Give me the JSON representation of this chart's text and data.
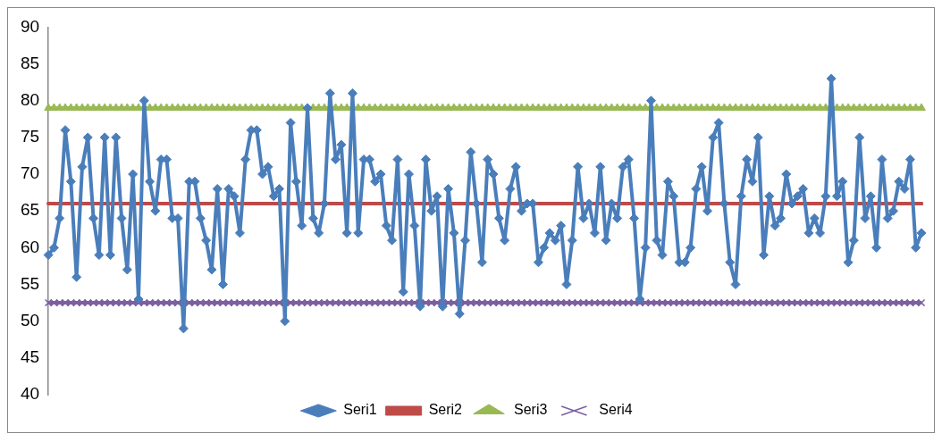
{
  "chart_data": {
    "type": "line",
    "categories": [
      null,
      null,
      null,
      null,
      null,
      null,
      null,
      null,
      null,
      null,
      null,
      null,
      null,
      null,
      null,
      null,
      null,
      null,
      null,
      null,
      null,
      null,
      null,
      null,
      null,
      null,
      null,
      null,
      null,
      null,
      null,
      null,
      null,
      null,
      null,
      null,
      null,
      null,
      null,
      null,
      null,
      null,
      null,
      null,
      null,
      null,
      null,
      null,
      null,
      null,
      null,
      null,
      null,
      null,
      null,
      null,
      null,
      null,
      null,
      null,
      null,
      null,
      null,
      null,
      null,
      null,
      null,
      null,
      null,
      null,
      null,
      null,
      null,
      null,
      null,
      null,
      null,
      null,
      null,
      null,
      null,
      null,
      null,
      null,
      null,
      null,
      null,
      null,
      null,
      null,
      null,
      null,
      null,
      null,
      null,
      null,
      null,
      null,
      null,
      null,
      null,
      null,
      null,
      null,
      null,
      null,
      null,
      null,
      null,
      null,
      null,
      null,
      null,
      null,
      null,
      null,
      null,
      null,
      null,
      null,
      null,
      null,
      null,
      null,
      null,
      null,
      null,
      null,
      null,
      null,
      null,
      null,
      null,
      null,
      null,
      null,
      null,
      null,
      null,
      null,
      null,
      null,
      null,
      null,
      null,
      null,
      null,
      null,
      null,
      null,
      null,
      null,
      null,
      null,
      null,
      null
    ],
    "series": [
      {
        "name": "Seri1",
        "color": "#4a7ebb",
        "marker": "diamond",
        "values": [
          59,
          60,
          64,
          76,
          69,
          56,
          71,
          75,
          64,
          59,
          75,
          59,
          75,
          64,
          57,
          70,
          53,
          80,
          69,
          65,
          72,
          72,
          64,
          64,
          49,
          69,
          69,
          64,
          61,
          57,
          68,
          55,
          68,
          67,
          62,
          72,
          76,
          76,
          70,
          71,
          67,
          68,
          50,
          77,
          69,
          63,
          79,
          64,
          62,
          66,
          81,
          72,
          74,
          62,
          81,
          62,
          72,
          72,
          69,
          70,
          63,
          61,
          72,
          54,
          70,
          63,
          52,
          72,
          65,
          67,
          52,
          68,
          62,
          51,
          61,
          73,
          66,
          58,
          72,
          70,
          64,
          61,
          68,
          71,
          65,
          66,
          66,
          58,
          60,
          62,
          61,
          63,
          55,
          61,
          71,
          64,
          66,
          62,
          71,
          61,
          66,
          64,
          71,
          72,
          64,
          53,
          60,
          80,
          61,
          59,
          69,
          67,
          58,
          58,
          60,
          68,
          71,
          65,
          75,
          77,
          66,
          58,
          55,
          67,
          72,
          69,
          75,
          59,
          67,
          63,
          64,
          70,
          66,
          67,
          68,
          62,
          64,
          62,
          67,
          83,
          67,
          69,
          58,
          61,
          75,
          64,
          67,
          60,
          72,
          64,
          65,
          69,
          68,
          72,
          60,
          62
        ]
      },
      {
        "name": "Seri2",
        "color": "#be4b48",
        "marker": "square",
        "values": [
          66,
          66,
          66,
          66,
          66,
          66,
          66,
          66,
          66,
          66,
          66,
          66,
          66,
          66,
          66,
          66,
          66,
          66,
          66,
          66,
          66,
          66,
          66,
          66,
          66,
          66,
          66,
          66,
          66,
          66,
          66,
          66,
          66,
          66,
          66,
          66,
          66,
          66,
          66,
          66,
          66,
          66,
          66,
          66,
          66,
          66,
          66,
          66,
          66,
          66,
          66,
          66,
          66,
          66,
          66,
          66,
          66,
          66,
          66,
          66,
          66,
          66,
          66,
          66,
          66,
          66,
          66,
          66,
          66,
          66,
          66,
          66,
          66,
          66,
          66,
          66,
          66,
          66,
          66,
          66,
          66,
          66,
          66,
          66,
          66,
          66,
          66,
          66,
          66,
          66,
          66,
          66,
          66,
          66,
          66,
          66,
          66,
          66,
          66,
          66,
          66,
          66,
          66,
          66,
          66,
          66,
          66,
          66,
          66,
          66,
          66,
          66,
          66,
          66,
          66,
          66,
          66,
          66,
          66,
          66,
          66,
          66,
          66,
          66,
          66,
          66,
          66,
          66,
          66,
          66,
          66,
          66,
          66,
          66,
          66,
          66,
          66,
          66,
          66,
          66,
          66,
          66,
          66,
          66,
          66,
          66,
          66,
          66,
          66,
          66,
          66,
          66,
          66,
          66,
          66,
          66
        ]
      },
      {
        "name": "Seri3",
        "color": "#98b954",
        "marker": "triangle",
        "values": [
          79,
          79,
          79,
          79,
          79,
          79,
          79,
          79,
          79,
          79,
          79,
          79,
          79,
          79,
          79,
          79,
          79,
          79,
          79,
          79,
          79,
          79,
          79,
          79,
          79,
          79,
          79,
          79,
          79,
          79,
          79,
          79,
          79,
          79,
          79,
          79,
          79,
          79,
          79,
          79,
          79,
          79,
          79,
          79,
          79,
          79,
          79,
          79,
          79,
          79,
          79,
          79,
          79,
          79,
          79,
          79,
          79,
          79,
          79,
          79,
          79,
          79,
          79,
          79,
          79,
          79,
          79,
          79,
          79,
          79,
          79,
          79,
          79,
          79,
          79,
          79,
          79,
          79,
          79,
          79,
          79,
          79,
          79,
          79,
          79,
          79,
          79,
          79,
          79,
          79,
          79,
          79,
          79,
          79,
          79,
          79,
          79,
          79,
          79,
          79,
          79,
          79,
          79,
          79,
          79,
          79,
          79,
          79,
          79,
          79,
          79,
          79,
          79,
          79,
          79,
          79,
          79,
          79,
          79,
          79,
          79,
          79,
          79,
          79,
          79,
          79,
          79,
          79,
          79,
          79,
          79,
          79,
          79,
          79,
          79,
          79,
          79,
          79,
          79,
          79,
          79,
          79,
          79,
          79,
          79,
          79,
          79,
          79,
          79,
          79,
          79,
          79,
          79,
          79,
          79,
          79
        ]
      },
      {
        "name": "Seri4",
        "color": "#7d60a0",
        "marker": "cross",
        "values": [
          52.5,
          52.5,
          52.5,
          52.5,
          52.5,
          52.5,
          52.5,
          52.5,
          52.5,
          52.5,
          52.5,
          52.5,
          52.5,
          52.5,
          52.5,
          52.5,
          52.5,
          52.5,
          52.5,
          52.5,
          52.5,
          52.5,
          52.5,
          52.5,
          52.5,
          52.5,
          52.5,
          52.5,
          52.5,
          52.5,
          52.5,
          52.5,
          52.5,
          52.5,
          52.5,
          52.5,
          52.5,
          52.5,
          52.5,
          52.5,
          52.5,
          52.5,
          52.5,
          52.5,
          52.5,
          52.5,
          52.5,
          52.5,
          52.5,
          52.5,
          52.5,
          52.5,
          52.5,
          52.5,
          52.5,
          52.5,
          52.5,
          52.5,
          52.5,
          52.5,
          52.5,
          52.5,
          52.5,
          52.5,
          52.5,
          52.5,
          52.5,
          52.5,
          52.5,
          52.5,
          52.5,
          52.5,
          52.5,
          52.5,
          52.5,
          52.5,
          52.5,
          52.5,
          52.5,
          52.5,
          52.5,
          52.5,
          52.5,
          52.5,
          52.5,
          52.5,
          52.5,
          52.5,
          52.5,
          52.5,
          52.5,
          52.5,
          52.5,
          52.5,
          52.5,
          52.5,
          52.5,
          52.5,
          52.5,
          52.5,
          52.5,
          52.5,
          52.5,
          52.5,
          52.5,
          52.5,
          52.5,
          52.5,
          52.5,
          52.5,
          52.5,
          52.5,
          52.5,
          52.5,
          52.5,
          52.5,
          52.5,
          52.5,
          52.5,
          52.5,
          52.5,
          52.5,
          52.5,
          52.5,
          52.5,
          52.5,
          52.5,
          52.5,
          52.5,
          52.5,
          52.5,
          52.5,
          52.5,
          52.5,
          52.5,
          52.5,
          52.5,
          52.5,
          52.5,
          52.5,
          52.5,
          52.5,
          52.5,
          52.5,
          52.5,
          52.5,
          52.5,
          52.5,
          52.5,
          52.5,
          52.5,
          52.5,
          52.5,
          52.5,
          52.5,
          52.5
        ]
      }
    ],
    "ylim": [
      40,
      90
    ],
    "yticks": [
      40,
      45,
      50,
      55,
      60,
      65,
      70,
      75,
      80,
      85,
      90
    ],
    "grid": false,
    "legend": "bottom"
  }
}
